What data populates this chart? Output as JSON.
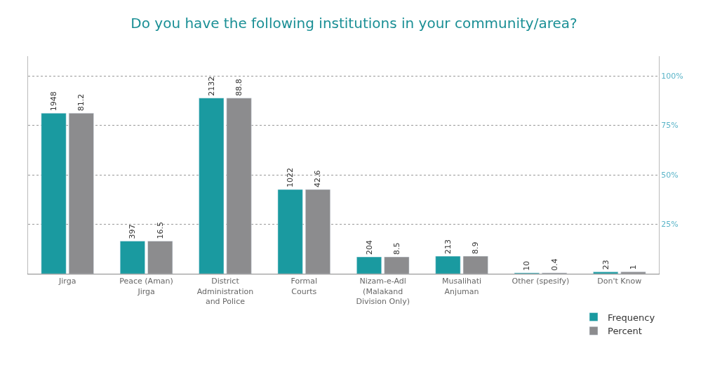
{
  "chart_data": {
    "type": "bar",
    "title": "Do you have the following institutions in your community/area?",
    "categories": [
      "Jirga",
      "Peace (Aman)\nJirga",
      "District\nAdministration\nand Police",
      "Formal\nCourts",
      "Nizam-e-Adl\n(Malakand\nDivision Only)",
      "Musalihati\nAnjuman",
      "Other (spesify)",
      "Don't Know"
    ],
    "series": [
      {
        "name": "Frequency",
        "color": "#1a9aa0",
        "values": [
          1948,
          397,
          2132,
          1022,
          204,
          213,
          10,
          23
        ]
      },
      {
        "name": "Percent",
        "color": "#8c8c8e",
        "axis": "y2",
        "values": [
          81.2,
          16.5,
          88.8,
          42.6,
          8.5,
          8.9,
          0.4,
          1
        ]
      }
    ],
    "ylim": [
      0,
      2640
    ],
    "y2lim": [
      0,
      110
    ],
    "y2ticks": [
      {
        "value": 25,
        "label": "25%"
      },
      {
        "value": 50,
        "label": "50%"
      },
      {
        "value": 75,
        "label": "75%"
      },
      {
        "value": 100,
        "label": "100%"
      }
    ],
    "grid": true,
    "legend": "bottom right",
    "data_labels": true
  }
}
